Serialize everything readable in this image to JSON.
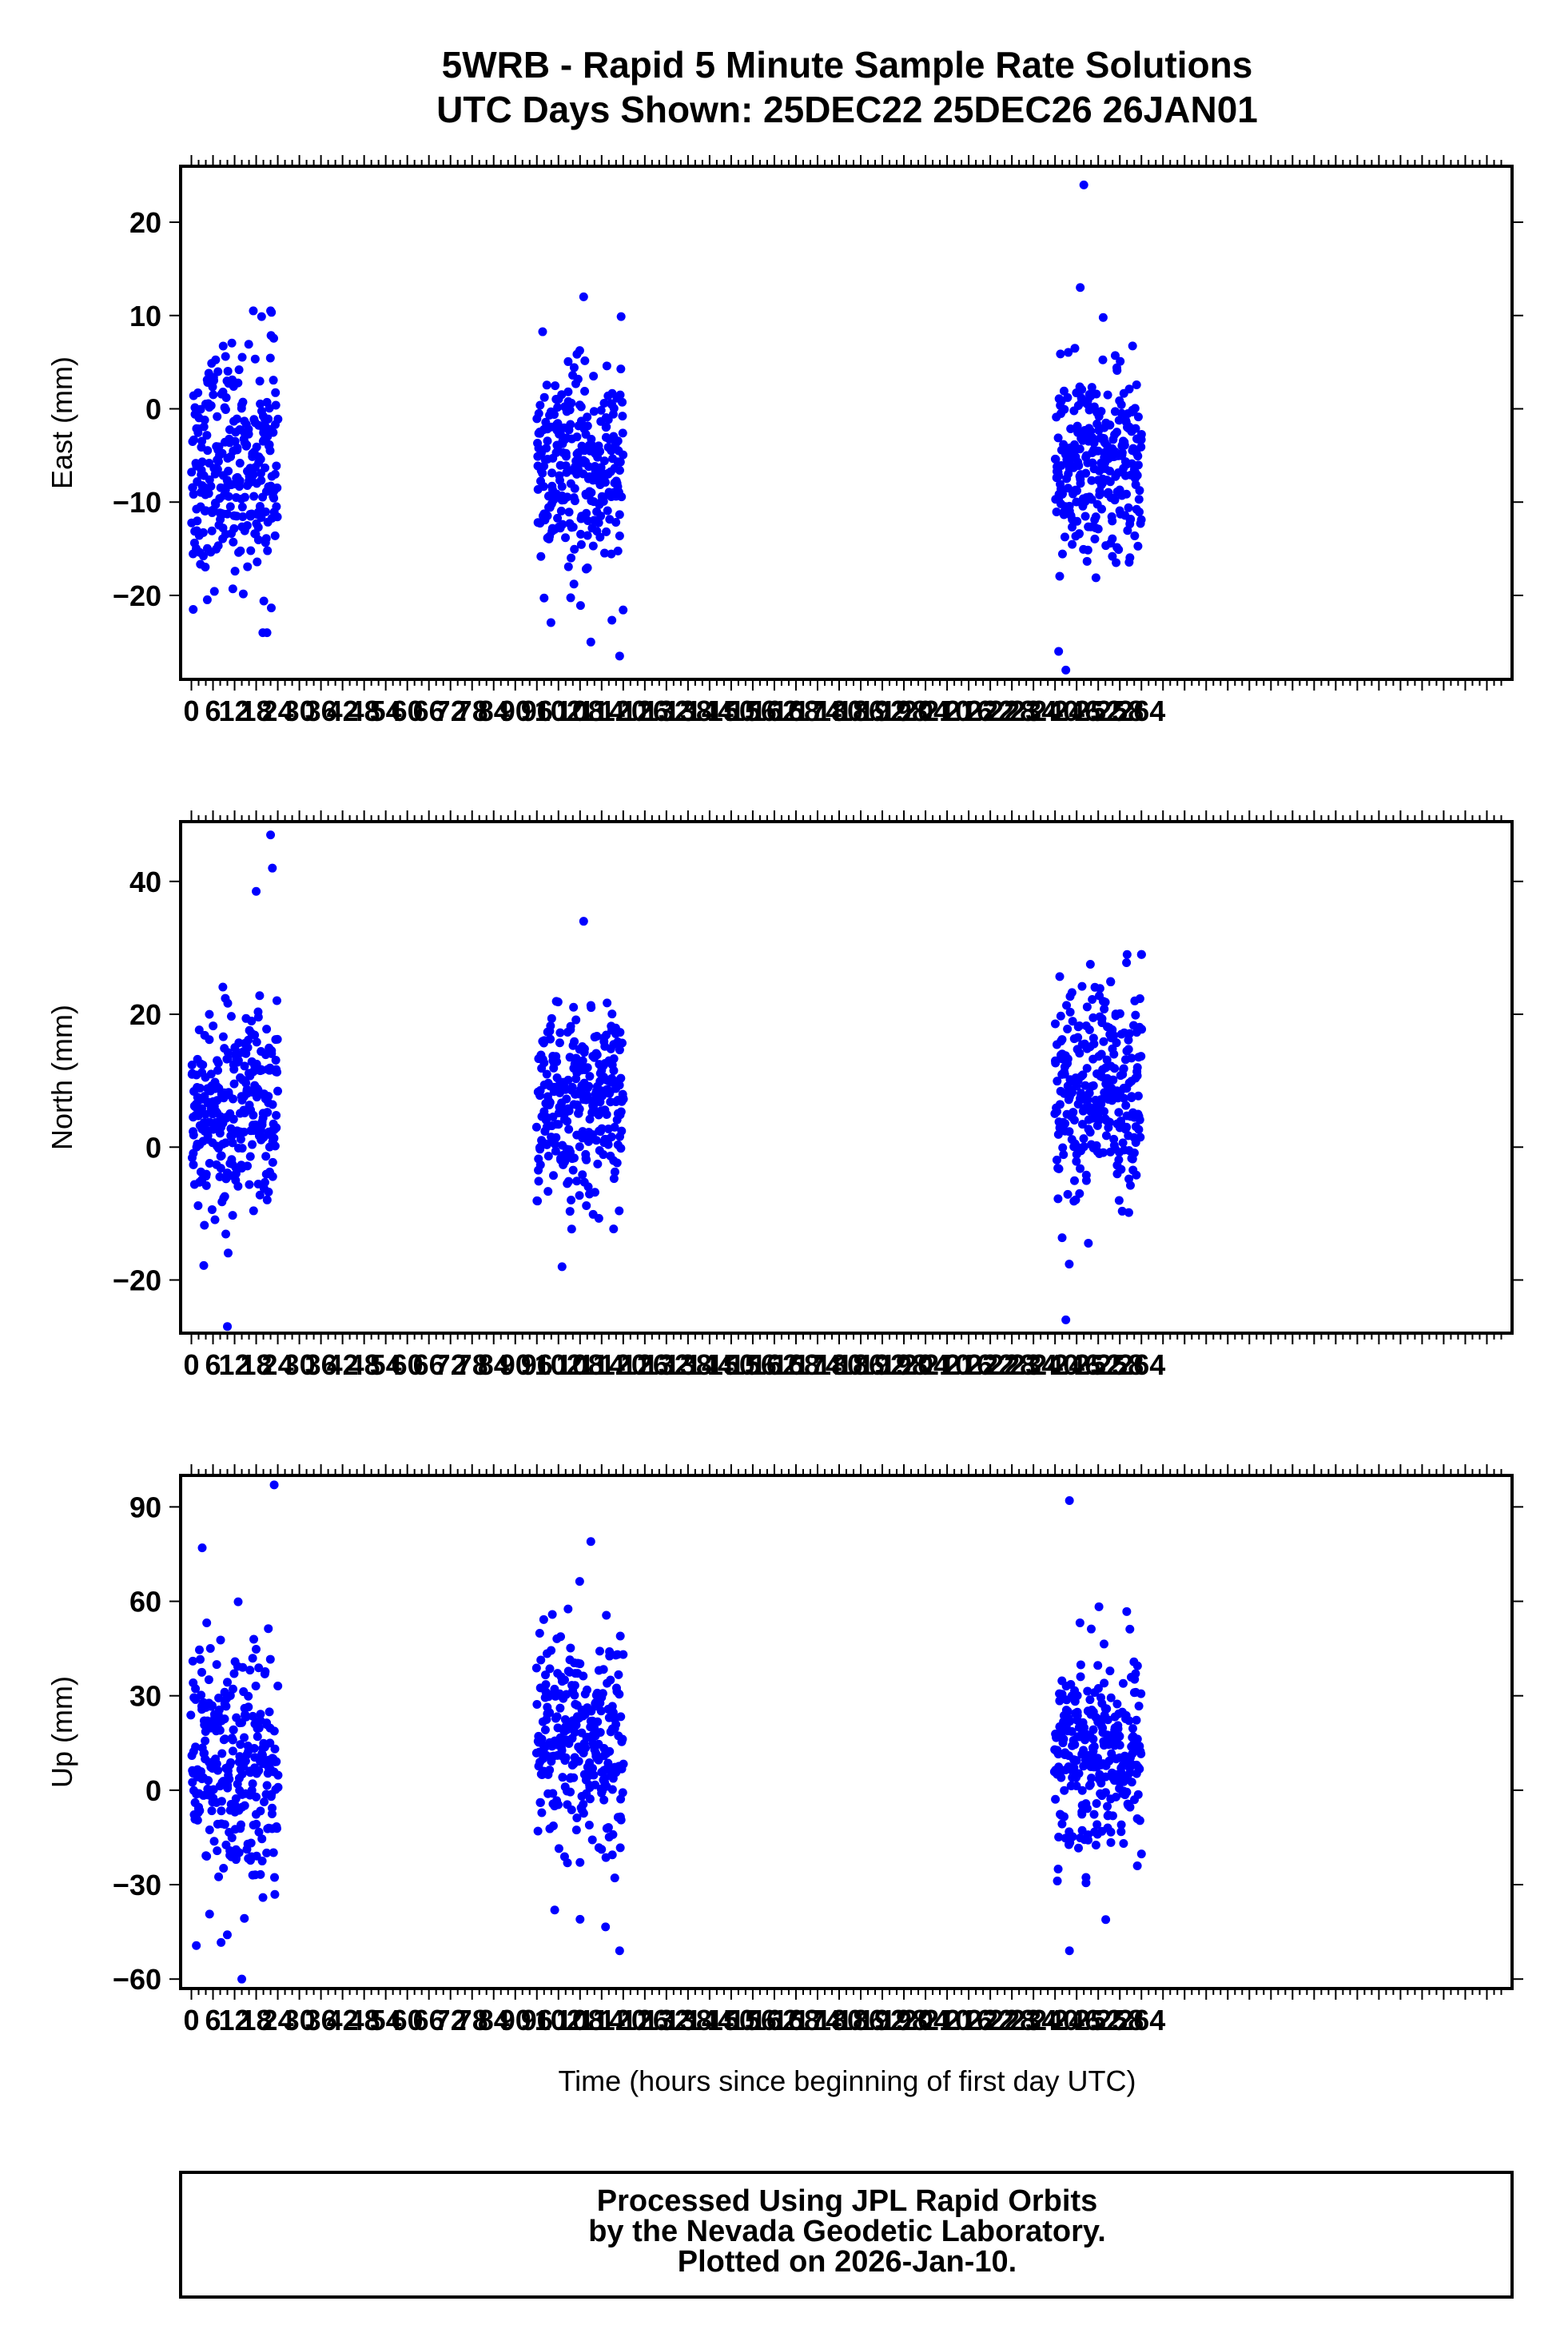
{
  "header": {
    "title_line1": "5WRB - Rapid 5 Minute Sample Rate Solutions",
    "title_line2": "UTC Days Shown:  25DEC22 25DEC26 26JAN01"
  },
  "footer": {
    "line1": "Processed Using JPL Rapid Orbits",
    "line2": "by the Nevada Geodetic Laboratory.",
    "line3": "Plotted on 2026-Jan-10."
  },
  "colors": {
    "points": "#0000ff",
    "axes": "#000000"
  },
  "chart_data": [
    {
      "type": "scatter",
      "panel": "east",
      "ylabel": "East (mm)",
      "xlim": [
        -3,
        367
      ],
      "ylim": [
        -29,
        26
      ],
      "yticks": [
        20,
        10,
        0,
        -10,
        -20
      ],
      "xticks": [
        0,
        6,
        12,
        18,
        24,
        30,
        36,
        42,
        48,
        54,
        60,
        66,
        72,
        78,
        84,
        90,
        96,
        102,
        108,
        114,
        120,
        126,
        132,
        138,
        144,
        150,
        156,
        162,
        168,
        174,
        180,
        186,
        192,
        198,
        204,
        210,
        216,
        222,
        228,
        234,
        240,
        246,
        252,
        258,
        264
      ],
      "clusters": [
        {
          "x_range": [
            0,
            24
          ],
          "center": -6,
          "spread": 6,
          "min": -24,
          "max": 10.5
        },
        {
          "x_range": [
            96,
            120
          ],
          "center": -7,
          "spread": 5.5,
          "min": -26.5,
          "max": 12
        },
        {
          "x_range": [
            240,
            264
          ],
          "center": -6,
          "spread": 5,
          "min": -28,
          "max": 24
        }
      ],
      "extremes": [
        {
          "x": 22,
          "y": 10.5
        },
        {
          "x": 0.5,
          "y": -21.5
        },
        {
          "x": 21,
          "y": -24
        },
        {
          "x": 109,
          "y": 12
        },
        {
          "x": 119,
          "y": -26.5
        },
        {
          "x": 111,
          "y": -25
        },
        {
          "x": 248,
          "y": 24
        },
        {
          "x": 247,
          "y": 13
        },
        {
          "x": 243,
          "y": -28
        },
        {
          "x": 241,
          "y": -26
        }
      ]
    },
    {
      "type": "scatter",
      "panel": "north",
      "ylabel": "North (mm)",
      "xlim": [
        -3,
        367
      ],
      "ylim": [
        -28,
        49
      ],
      "yticks": [
        40,
        20,
        0,
        -20
      ],
      "xticks": [
        0,
        6,
        12,
        18,
        24,
        30,
        36,
        42,
        48,
        54,
        60,
        66,
        72,
        78,
        84,
        90,
        96,
        102,
        108,
        114,
        120,
        126,
        132,
        138,
        144,
        150,
        156,
        162,
        168,
        174,
        180,
        186,
        192,
        198,
        204,
        210,
        216,
        222,
        228,
        234,
        240,
        246,
        252,
        258,
        264
      ],
      "clusters": [
        {
          "x_range": [
            0,
            24
          ],
          "center": 5,
          "spread": 8,
          "min": -27,
          "max": 47
        },
        {
          "x_range": [
            96,
            120
          ],
          "center": 6,
          "spread": 7,
          "min": -18,
          "max": 34
        },
        {
          "x_range": [
            240,
            264
          ],
          "center": 9,
          "spread": 8,
          "min": -26,
          "max": 29
        }
      ],
      "extremes": [
        {
          "x": 22,
          "y": 47
        },
        {
          "x": 22.5,
          "y": 42
        },
        {
          "x": 18,
          "y": 38.5
        },
        {
          "x": 10,
          "y": -27
        },
        {
          "x": 109,
          "y": 34
        },
        {
          "x": 103,
          "y": -18
        },
        {
          "x": 243,
          "y": -26
        },
        {
          "x": 264,
          "y": 29
        }
      ]
    },
    {
      "type": "scatter",
      "panel": "up",
      "ylabel": "Up (mm)",
      "xlabel": "Time (hours since beginning of first day UTC)",
      "xlim": [
        -3,
        367
      ],
      "ylim": [
        -63,
        100
      ],
      "yticks": [
        90,
        60,
        30,
        0,
        -30,
        -60
      ],
      "xticks": [
        0,
        6,
        12,
        18,
        24,
        30,
        36,
        42,
        48,
        54,
        60,
        66,
        72,
        78,
        84,
        90,
        96,
        102,
        108,
        114,
        120,
        126,
        132,
        138,
        144,
        150,
        156,
        162,
        168,
        174,
        180,
        186,
        192,
        198,
        204,
        210,
        216,
        222,
        228,
        234,
        240,
        246,
        252,
        258,
        264
      ],
      "clusters": [
        {
          "x_range": [
            0,
            24
          ],
          "center": 5,
          "spread": 22,
          "min": -60,
          "max": 97
        },
        {
          "x_range": [
            96,
            120
          ],
          "center": 13,
          "spread": 17,
          "min": -51,
          "max": 79
        },
        {
          "x_range": [
            240,
            264
          ],
          "center": 13,
          "spread": 16,
          "min": -51,
          "max": 92
        }
      ],
      "extremes": [
        {
          "x": 23,
          "y": 97
        },
        {
          "x": 14,
          "y": -60
        },
        {
          "x": 3,
          "y": 77
        },
        {
          "x": 111,
          "y": 79
        },
        {
          "x": 119,
          "y": -51
        },
        {
          "x": 108,
          "y": -41
        },
        {
          "x": 244,
          "y": 92
        },
        {
          "x": 244,
          "y": -51
        }
      ]
    }
  ]
}
